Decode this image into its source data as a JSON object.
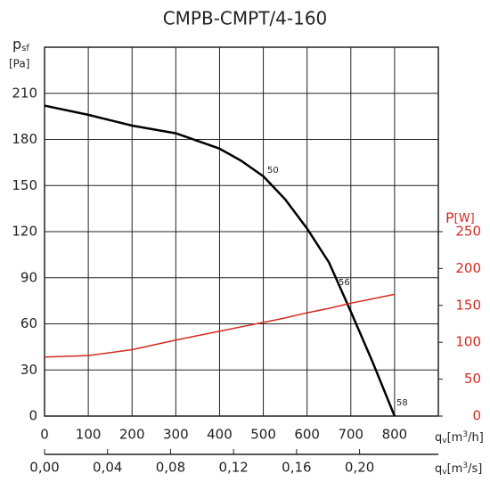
{
  "chart_data": {
    "type": "line",
    "title": "CMPB-CMPT/4-160",
    "ylabel": {
      "main": "p",
      "sub": "sf",
      "unit": "[Pa]"
    },
    "y2label": {
      "main": "P",
      "unit": "[W]"
    },
    "xlabel": {
      "main": "q",
      "sub": "v",
      "unit_a": "[m",
      "sup": "3",
      "unit_b": "/h]"
    },
    "x2label": {
      "main": "q",
      "sub": "v",
      "unit_a": "[m",
      "sup": "3",
      "unit_b": "/s]"
    },
    "x": [
      0,
      100,
      200,
      300,
      400,
      450,
      500,
      550,
      600,
      650,
      700,
      750,
      800
    ],
    "series": [
      {
        "values": [
          202,
          196,
          189,
          184,
          174,
          166,
          156,
          141,
          122,
          100,
          68,
          35,
          0
        ],
        "color": "#000000"
      },
      {
        "values": [
          80,
          82,
          90,
          103,
          115,
          121,
          127,
          133,
          140,
          146,
          153,
          159,
          165
        ],
        "color": "#d42a20",
        "axis": "y2"
      }
    ],
    "annotations": [
      "50",
      "56",
      "58"
    ],
    "xlim": [
      0,
      900
    ],
    "xticks": [
      0,
      100,
      200,
      300,
      400,
      500,
      600,
      700,
      800
    ],
    "x2lim": [
      0,
      0.25
    ],
    "x2ticks": [
      {
        "value": 0,
        "label": "0,00"
      },
      {
        "value": 0.04,
        "label": "0,04"
      },
      {
        "value": 0.08,
        "label": "0,08"
      },
      {
        "value": 0.12,
        "label": "0,12"
      },
      {
        "value": 0.16,
        "label": "0,16"
      },
      {
        "value": 0.2,
        "label": "0,20"
      }
    ],
    "ylim": [
      0,
      240
    ],
    "yticks": [
      0,
      30,
      60,
      90,
      120,
      150,
      180,
      210
    ],
    "y2lim": [
      0,
      500
    ],
    "y2ticks": [
      0,
      50,
      100,
      150,
      200,
      250
    ],
    "grid": true
  }
}
